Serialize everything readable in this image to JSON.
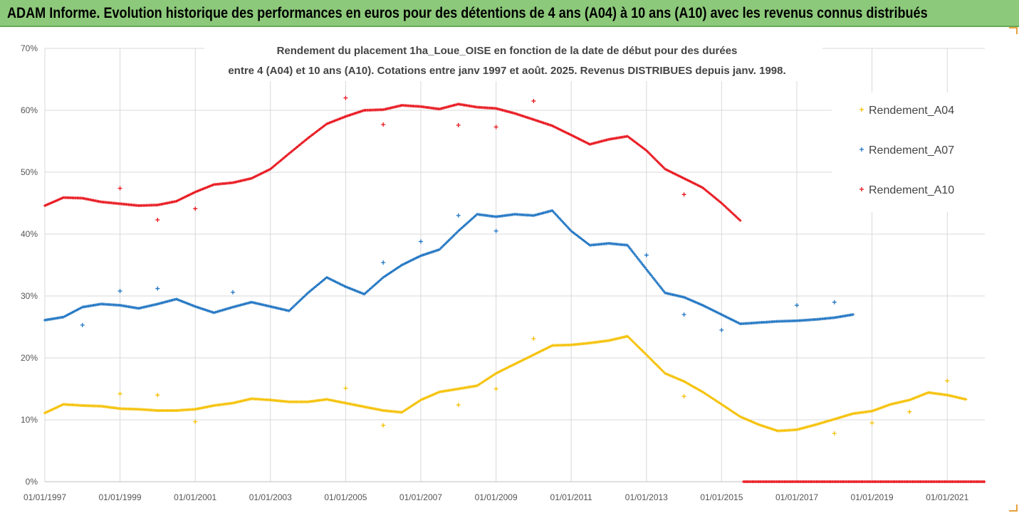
{
  "banner": {
    "title": "ADAM Informe. Evolution historique des performances en euros pour des détentions de 4 ans (A04) à 10 ans (A10) avec les revenus connus distribués"
  },
  "colors": {
    "banner": "#8cc97a",
    "a04": "#f5c000",
    "a07": "#1f74c2",
    "a10": "#e8141c",
    "grid": "#d9d9d9"
  },
  "chart_data": {
    "type": "scatter",
    "title_lines": [
      "Rendement du placement 1ha_Loue_OISE en fonction de la date de début pour des durées",
      "entre 4 (A04) et 10 ans (A10). Cotations entre janv 1997 et août. 2025. Revenus DISTRIBUES depuis janv. 1998."
    ],
    "xlabel": "",
    "ylabel": "",
    "x_tick_labels": [
      "01/01/1997",
      "01/01/1999",
      "01/01/2001",
      "01/01/2003",
      "01/01/2005",
      "01/01/2007",
      "01/01/2009",
      "01/01/2011",
      "01/01/2013",
      "01/01/2015",
      "01/01/2017",
      "01/01/2019",
      "01/01/2021"
    ],
    "y_tick_labels": [
      "0%",
      "10%",
      "20%",
      "30%",
      "40%",
      "50%",
      "60%",
      "70%"
    ],
    "xlim": [
      "1997-01-01",
      "2022-01-01"
    ],
    "ylim": [
      0,
      0.7
    ],
    "grid": true,
    "legend_position": "right",
    "series": [
      {
        "name": "Rendement_A04",
        "color": "#f5c000",
        "points": [
          [
            "1997-01-01",
            0.111
          ],
          [
            "1997-07-01",
            0.125
          ],
          [
            "1998-01-01",
            0.123
          ],
          [
            "1998-07-01",
            0.122
          ],
          [
            "1999-01-01",
            0.118
          ],
          [
            "1999-07-01",
            0.117
          ],
          [
            "2000-01-01",
            0.115
          ],
          [
            "2000-07-01",
            0.115
          ],
          [
            "2001-01-01",
            0.117
          ],
          [
            "2001-07-01",
            0.123
          ],
          [
            "2002-01-01",
            0.127
          ],
          [
            "2002-07-01",
            0.134
          ],
          [
            "2003-01-01",
            0.132
          ],
          [
            "2003-07-01",
            0.129
          ],
          [
            "2004-01-01",
            0.129
          ],
          [
            "2004-07-01",
            0.133
          ],
          [
            "2005-01-01",
            0.127
          ],
          [
            "2005-07-01",
            0.121
          ],
          [
            "2006-01-01",
            0.115
          ],
          [
            "2006-07-01",
            0.112
          ],
          [
            "2007-01-01",
            0.132
          ],
          [
            "2007-07-01",
            0.145
          ],
          [
            "2008-01-01",
            0.15
          ],
          [
            "2008-07-01",
            0.155
          ],
          [
            "2009-01-01",
            0.175
          ],
          [
            "2009-07-01",
            0.19
          ],
          [
            "2010-01-01",
            0.205
          ],
          [
            "2010-07-01",
            0.22
          ],
          [
            "2011-01-01",
            0.221
          ],
          [
            "2011-07-01",
            0.224
          ],
          [
            "2012-01-01",
            0.228
          ],
          [
            "2012-07-01",
            0.235
          ],
          [
            "2013-01-01",
            0.205
          ],
          [
            "2013-07-01",
            0.175
          ],
          [
            "2014-01-01",
            0.162
          ],
          [
            "2014-07-01",
            0.145
          ],
          [
            "2015-01-01",
            0.125
          ],
          [
            "2015-07-01",
            0.105
          ],
          [
            "2016-01-01",
            0.092
          ],
          [
            "2016-07-01",
            0.082
          ],
          [
            "2017-01-01",
            0.084
          ],
          [
            "2017-07-01",
            0.092
          ],
          [
            "2018-01-01",
            0.101
          ],
          [
            "2018-07-01",
            0.11
          ],
          [
            "2019-01-01",
            0.114
          ],
          [
            "2019-07-01",
            0.125
          ],
          [
            "2020-01-01",
            0.132
          ],
          [
            "2020-07-01",
            0.144
          ],
          [
            "2021-01-01",
            0.14
          ],
          [
            "2021-07-01",
            0.133
          ]
        ],
        "outliers": [
          [
            "1999-01-01",
            0.142
          ],
          [
            "2000-01-01",
            0.14
          ],
          [
            "2001-01-01",
            0.097
          ],
          [
            "2005-01-01",
            0.151
          ],
          [
            "2006-01-01",
            0.091
          ],
          [
            "2008-01-01",
            0.124
          ],
          [
            "2009-01-01",
            0.15
          ],
          [
            "2010-01-01",
            0.231
          ],
          [
            "2014-01-01",
            0.138
          ],
          [
            "2018-01-01",
            0.078
          ],
          [
            "2019-01-01",
            0.095
          ],
          [
            "2020-01-01",
            0.113
          ],
          [
            "2021-01-01",
            0.163
          ]
        ]
      },
      {
        "name": "Rendement_A07",
        "color": "#1f74c2",
        "points": [
          [
            "1997-01-01",
            0.261
          ],
          [
            "1997-07-01",
            0.266
          ],
          [
            "1998-01-01",
            0.282
          ],
          [
            "1998-07-01",
            0.287
          ],
          [
            "1999-01-01",
            0.285
          ],
          [
            "1999-07-01",
            0.28
          ],
          [
            "2000-01-01",
            0.287
          ],
          [
            "2000-07-01",
            0.295
          ],
          [
            "2001-01-01",
            0.283
          ],
          [
            "2001-07-01",
            0.273
          ],
          [
            "2002-01-01",
            0.282
          ],
          [
            "2002-07-01",
            0.29
          ],
          [
            "2003-01-01",
            0.283
          ],
          [
            "2003-07-01",
            0.276
          ],
          [
            "2004-01-01",
            0.305
          ],
          [
            "2004-07-01",
            0.33
          ],
          [
            "2005-01-01",
            0.315
          ],
          [
            "2005-07-01",
            0.303
          ],
          [
            "2006-01-01",
            0.33
          ],
          [
            "2006-07-01",
            0.35
          ],
          [
            "2007-01-01",
            0.365
          ],
          [
            "2007-07-01",
            0.375
          ],
          [
            "2008-01-01",
            0.405
          ],
          [
            "2008-07-01",
            0.432
          ],
          [
            "2009-01-01",
            0.428
          ],
          [
            "2009-07-01",
            0.432
          ],
          [
            "2010-01-01",
            0.43
          ],
          [
            "2010-07-01",
            0.438
          ],
          [
            "2011-01-01",
            0.405
          ],
          [
            "2011-07-01",
            0.382
          ],
          [
            "2012-01-01",
            0.385
          ],
          [
            "2012-07-01",
            0.382
          ],
          [
            "2013-01-01",
            0.343
          ],
          [
            "2013-07-01",
            0.305
          ],
          [
            "2014-01-01",
            0.298
          ],
          [
            "2014-07-01",
            0.285
          ],
          [
            "2015-01-01",
            0.27
          ],
          [
            "2015-07-01",
            0.255
          ],
          [
            "2016-01-01",
            0.257
          ],
          [
            "2016-07-01",
            0.259
          ],
          [
            "2017-01-01",
            0.26
          ],
          [
            "2017-07-01",
            0.262
          ],
          [
            "2018-01-01",
            0.265
          ],
          [
            "2018-07-01",
            0.27
          ]
        ],
        "outliers": [
          [
            "1998-01-01",
            0.253
          ],
          [
            "1999-01-01",
            0.308
          ],
          [
            "2000-01-01",
            0.312
          ],
          [
            "2002-01-01",
            0.306
          ],
          [
            "2006-01-01",
            0.354
          ],
          [
            "2007-01-01",
            0.388
          ],
          [
            "2008-01-01",
            0.43
          ],
          [
            "2009-01-01",
            0.405
          ],
          [
            "2013-01-01",
            0.366
          ],
          [
            "2014-01-01",
            0.27
          ],
          [
            "2015-01-01",
            0.245
          ],
          [
            "2017-01-01",
            0.285
          ],
          [
            "2018-01-01",
            0.29
          ]
        ]
      },
      {
        "name": "Rendement_A10",
        "color": "#e8141c",
        "points": [
          [
            "1997-01-01",
            0.446
          ],
          [
            "1997-07-01",
            0.459
          ],
          [
            "1998-01-01",
            0.458
          ],
          [
            "1998-07-01",
            0.452
          ],
          [
            "1999-01-01",
            0.449
          ],
          [
            "1999-07-01",
            0.446
          ],
          [
            "2000-01-01",
            0.447
          ],
          [
            "2000-07-01",
            0.453
          ],
          [
            "2001-01-01",
            0.468
          ],
          [
            "2001-07-01",
            0.48
          ],
          [
            "2002-01-01",
            0.483
          ],
          [
            "2002-07-01",
            0.49
          ],
          [
            "2003-01-01",
            0.505
          ],
          [
            "2003-07-01",
            0.53
          ],
          [
            "2004-01-01",
            0.555
          ],
          [
            "2004-07-01",
            0.578
          ],
          [
            "2005-01-01",
            0.59
          ],
          [
            "2005-07-01",
            0.6
          ],
          [
            "2006-01-01",
            0.601
          ],
          [
            "2006-07-01",
            0.608
          ],
          [
            "2007-01-01",
            0.606
          ],
          [
            "2007-07-01",
            0.602
          ],
          [
            "2008-01-01",
            0.61
          ],
          [
            "2008-07-01",
            0.605
          ],
          [
            "2009-01-01",
            0.603
          ],
          [
            "2009-07-01",
            0.595
          ],
          [
            "2010-01-01",
            0.585
          ],
          [
            "2010-07-01",
            0.575
          ],
          [
            "2011-01-01",
            0.56
          ],
          [
            "2011-07-01",
            0.545
          ],
          [
            "2012-01-01",
            0.553
          ],
          [
            "2012-07-01",
            0.558
          ],
          [
            "2013-01-01",
            0.535
          ],
          [
            "2013-07-01",
            0.505
          ],
          [
            "2014-01-01",
            0.49
          ],
          [
            "2014-07-01",
            0.475
          ],
          [
            "2015-01-01",
            0.45
          ],
          [
            "2015-07-01",
            0.422
          ]
        ],
        "outliers": [
          [
            "1999-01-01",
            0.474
          ],
          [
            "2000-01-01",
            0.423
          ],
          [
            "2001-01-01",
            0.441
          ],
          [
            "2005-01-01",
            0.62
          ],
          [
            "2006-01-01",
            0.577
          ],
          [
            "2008-01-01",
            0.576
          ],
          [
            "2009-01-01",
            0.573
          ],
          [
            "2010-01-01",
            0.615
          ],
          [
            "2014-01-01",
            0.464
          ]
        ],
        "zero_segment": [
          "2015-08-01",
          "2022-01-01"
        ]
      }
    ]
  }
}
